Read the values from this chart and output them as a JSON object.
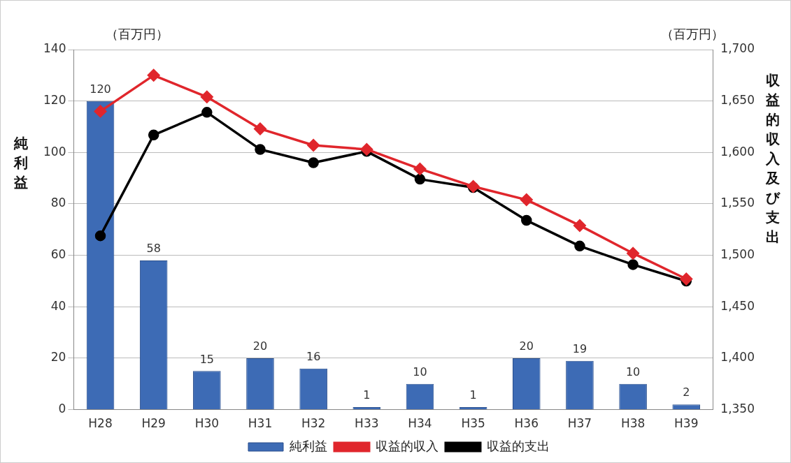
{
  "chart_data": {
    "type": "bar",
    "categories": [
      "H28",
      "H29",
      "H30",
      "H31",
      "H32",
      "H33",
      "H34",
      "H35",
      "H36",
      "H37",
      "H38",
      "H39"
    ],
    "ylabel": "純利益",
    "y2label": "収益的収入及び支出",
    "annotations": [
      "（百万円）",
      "（百万円）"
    ],
    "series": [
      {
        "name": "純利益",
        "color": "#3d6bb5",
        "values": [
          120,
          58,
          15,
          20,
          16,
          1,
          10,
          1,
          20,
          19,
          10,
          2
        ],
        "value_labels": [
          "120",
          "58",
          "15",
          "20",
          "16",
          "1",
          "10",
          "1",
          "20",
          "19",
          "10",
          "2"
        ]
      },
      {
        "name": "収益的収入",
        "type": "line",
        "axis": "y2",
        "color": "#e0262c",
        "marker": "diamond",
        "values": [
          1640,
          1675,
          1654,
          1623,
          1607,
          1603,
          1584,
          1567,
          1554,
          1529,
          1502,
          1477
        ]
      },
      {
        "name": "収益的支出",
        "type": "line",
        "axis": "y2",
        "color": "#000000",
        "marker": "circle",
        "values": [
          1519,
          1617,
          1639,
          1603,
          1590,
          1601,
          1574,
          1566,
          1534,
          1509,
          1491,
          1475
        ]
      }
    ],
    "ylim": [
      0,
      140
    ],
    "yticks": [
      0,
      20,
      40,
      60,
      80,
      100,
      120,
      140
    ],
    "y2lim": [
      1350,
      1700
    ],
    "y2ticks": [
      {
        "value": 1350,
        "label": "1,350"
      },
      {
        "value": 1400,
        "label": "1,400"
      },
      {
        "value": 1450,
        "label": "1,450"
      },
      {
        "value": 1500,
        "label": "1,500"
      },
      {
        "value": 1550,
        "label": "1,550"
      },
      {
        "value": 1600,
        "label": "1,600"
      },
      {
        "value": 1650,
        "label": "1,650"
      },
      {
        "value": 1700,
        "label": "1,700"
      }
    ],
    "grid": "y",
    "legend": "bottom"
  }
}
